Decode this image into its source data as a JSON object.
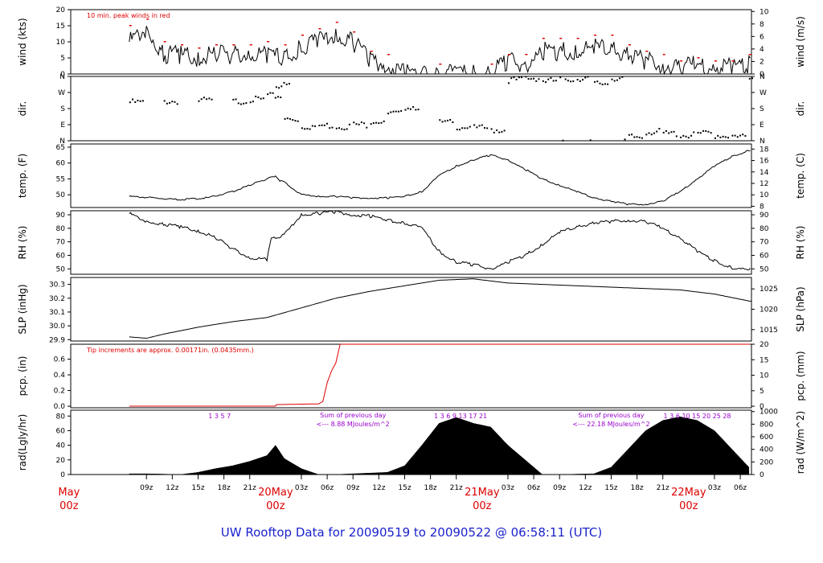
{
  "title": "UW Rooftop Data for 20090519  to  20090522 @ 06:58:11  (UTC)",
  "colors": {
    "axis": "#000000",
    "red": "#dd0000",
    "purple": "#9900cc",
    "blue": "#0000cc"
  },
  "chart_data": [
    {
      "id": "wind",
      "type": "line",
      "ylabel": "wind (kts)",
      "ylabel_right": "wind (m/s)",
      "yticks": [
        "0",
        "5",
        "10",
        "15",
        "20"
      ],
      "ytick_vals": [
        0,
        5,
        10,
        15,
        20
      ],
      "ylim": [
        0,
        20
      ],
      "yticks_right": [
        "0",
        "2",
        "4",
        "6",
        "8",
        "10"
      ],
      "ytick_right_vals": [
        0,
        2,
        4,
        6,
        8,
        10
      ],
      "ylim_right": [
        0,
        10.29
      ],
      "annotation": "10 min. peak winds in red",
      "series": [
        {
          "t": [
            0,
            2,
            4,
            6,
            8,
            10,
            12,
            14,
            16,
            18,
            20,
            22,
            24,
            26,
            28,
            30,
            32,
            34,
            36,
            38,
            40,
            42,
            44,
            46,
            48,
            50,
            52,
            54,
            56,
            58,
            60,
            62,
            64,
            66,
            68,
            70,
            72,
            74,
            76,
            78,
            80,
            82,
            84
          ],
          "v": [
            10,
            14,
            6,
            6,
            5,
            6,
            6,
            6,
            6,
            5,
            8,
            10,
            12,
            10,
            4,
            3,
            0,
            0,
            0,
            0,
            0,
            0,
            4,
            3,
            7,
            7,
            7,
            8,
            8,
            6,
            4,
            3,
            2,
            3,
            2,
            2,
            3,
            5,
            8,
            8,
            8,
            6,
            3
          ]
        }
      ],
      "peaks": {
        "t": [
          0,
          2,
          4,
          6,
          8,
          10,
          12,
          14,
          16,
          18,
          20,
          22,
          24,
          26,
          28,
          30,
          36,
          42,
          44,
          46,
          48,
          50,
          52,
          54,
          56,
          58,
          60,
          62,
          64,
          66,
          68,
          70,
          72,
          74,
          76,
          78,
          80,
          82,
          84
        ],
        "v": [
          15,
          17,
          10,
          9,
          8,
          9,
          9,
          9,
          10,
          9,
          12,
          14,
          16,
          13,
          7,
          6,
          3,
          3,
          6,
          6,
          11,
          11,
          11,
          12,
          12,
          9,
          7,
          6,
          4,
          5,
          4,
          4,
          6,
          9,
          12,
          12,
          12,
          9,
          6
        ]
      }
    },
    {
      "id": "dir",
      "type": "scatter",
      "ylabel": "dir.",
      "ylabel_right": "dir.",
      "yticks": [
        "N",
        "E",
        "S",
        "W",
        "N"
      ],
      "ytick_vals": [
        0,
        90,
        180,
        270,
        360
      ],
      "ylim": [
        0,
        360
      ],
      "series": [
        {
          "t": [
            0,
            4,
            8,
            12,
            14,
            16,
            17,
            18,
            20,
            22,
            24,
            26,
            28,
            30,
            32,
            36,
            38,
            40,
            42,
            44,
            46,
            48,
            50,
            52,
            54,
            56,
            58,
            60,
            62,
            64,
            66,
            68,
            70,
            72,
            74,
            76,
            78,
            80,
            82,
            84
          ],
          "v": [
            215,
            220,
            225,
            220,
            230,
            250,
            310,
            120,
            80,
            85,
            80,
            90,
            110,
            150,
            190,
            100,
            80,
            70,
            60,
            340,
            350,
            335,
            345,
            350,
            320,
            350,
            20,
            50,
            40,
            30,
            40,
            30,
            20,
            355,
            350,
            355,
            350,
            360,
            5,
            40
          ]
        }
      ]
    },
    {
      "id": "temp",
      "type": "line",
      "ylabel": "temp. (F)",
      "ylabel_right": "temp. (C)",
      "yticks": [
        "50",
        "55",
        "60",
        "65"
      ],
      "ytick_vals": [
        50,
        55,
        60,
        65
      ],
      "ylim": [
        46,
        66
      ],
      "yticks_right": [
        "8",
        "10",
        "12",
        "14",
        "16",
        "18"
      ],
      "ytick_right_vals": [
        8,
        10,
        12,
        14,
        16,
        18
      ],
      "ylim_right": [
        7.78,
        18.89
      ],
      "series": [
        {
          "t": [
            0,
            3,
            6,
            9,
            12,
            14,
            16,
            17,
            17.5,
            18,
            19,
            20,
            22,
            24,
            26,
            28,
            30,
            32,
            34,
            36,
            38,
            40,
            42,
            44,
            46,
            48,
            50,
            52,
            54,
            56,
            58,
            60,
            62,
            64,
            66,
            68,
            70,
            72,
            74,
            76,
            78,
            80,
            82,
            84
          ],
          "v": [
            49.5,
            49,
            48.5,
            49,
            51,
            53,
            55,
            56,
            54.5,
            54,
            52,
            50,
            49.5,
            49.5,
            49,
            49,
            49,
            49.5,
            51,
            56,
            59,
            61,
            62.5,
            61,
            58,
            55,
            53,
            51,
            49,
            48,
            47,
            47,
            48,
            51,
            55,
            59,
            62,
            64,
            65,
            63,
            62,
            59,
            57,
            55.5
          ]
        }
      ]
    },
    {
      "id": "rh",
      "type": "line",
      "ylabel": "RH (%)",
      "ylabel_right": "RH (%)",
      "yticks": [
        "50",
        "60",
        "70",
        "80",
        "90"
      ],
      "ytick_vals": [
        50,
        60,
        70,
        80,
        90
      ],
      "ylim": [
        46,
        93
      ],
      "yticks_right": [
        "50",
        "60",
        "70",
        "80",
        "90"
      ],
      "ytick_right_vals": [
        50,
        60,
        70,
        80,
        90
      ],
      "ylim_right": [
        46,
        93
      ],
      "series": [
        {
          "t": [
            0,
            2,
            4,
            6,
            8,
            10,
            12,
            14,
            16,
            16.5,
            17,
            18,
            20,
            22,
            24,
            26,
            28,
            30,
            32,
            34,
            36,
            38,
            40,
            42,
            44,
            46,
            48,
            50,
            52,
            54,
            56,
            58,
            60,
            62,
            64,
            66,
            68,
            70,
            72,
            74,
            76,
            78,
            80,
            82,
            84
          ],
          "v": [
            91,
            85,
            83,
            81,
            78,
            73,
            65,
            58,
            57,
            72,
            73,
            75,
            90,
            91,
            92,
            90,
            89,
            86,
            84,
            80,
            63,
            55,
            53,
            50,
            55,
            60,
            68,
            77,
            81,
            84,
            85,
            86,
            85,
            80,
            73,
            63,
            56,
            51,
            49,
            54,
            56,
            57,
            58,
            58,
            60
          ]
        }
      ]
    },
    {
      "id": "slp",
      "type": "line",
      "ylabel": "SLP (inHg)",
      "ylabel_right": "SLP (hPa)",
      "yticks": [
        "29.9",
        "30.0",
        "30.1",
        "30.2",
        "30.3"
      ],
      "ytick_vals": [
        29.9,
        30.0,
        30.1,
        30.2,
        30.3
      ],
      "ylim": [
        29.89,
        30.35
      ],
      "yticks_right": [
        "1015",
        "1020",
        "1025"
      ],
      "ytick_right_vals": [
        1015,
        1020,
        1025
      ],
      "ylim_right": [
        1012.2,
        1027.8
      ],
      "series": [
        {
          "t": [
            0,
            2,
            4,
            8,
            12,
            16,
            20,
            24,
            28,
            32,
            36,
            40,
            44,
            48,
            52,
            56,
            60,
            64,
            68,
            72,
            76,
            80,
            84
          ],
          "v": [
            29.92,
            29.91,
            29.94,
            29.99,
            30.03,
            30.06,
            30.13,
            30.2,
            30.25,
            30.29,
            30.33,
            30.34,
            30.31,
            30.3,
            30.29,
            30.28,
            30.27,
            30.26,
            30.23,
            30.18,
            30.15,
            30.15,
            30.17
          ]
        }
      ]
    },
    {
      "id": "pcp",
      "type": "line",
      "ylabel": "pcp. (in)",
      "ylabel_right": "pcp. (mm)",
      "yticks": [
        "0.0",
        "0.2",
        "0.4",
        "0.6"
      ],
      "ytick_vals": [
        0,
        0.2,
        0.4,
        0.6
      ],
      "ylim": [
        -0.02,
        0.79
      ],
      "yticks_right": [
        "0",
        "5",
        "10",
        "15",
        "20"
      ],
      "ytick_right_vals": [
        0,
        5,
        10,
        15,
        20
      ],
      "ylim_right": [
        -0.5,
        20
      ],
      "annotation": "Tip increments are approx. 0.00171in. (0.0435mm.)",
      "series": [
        {
          "t": [
            0,
            17,
            17.1,
            22,
            22.5,
            23,
            23.5,
            24,
            24.5,
            84
          ],
          "v": [
            0.0,
            0.0,
            0.02,
            0.03,
            0.06,
            0.3,
            0.45,
            0.55,
            0.79,
            0.79
          ]
        }
      ]
    },
    {
      "id": "rad",
      "type": "area",
      "ylabel": "rad(Lgly/hr)",
      "ylabel_right": "rad (W/m^2)",
      "yticks": [
        "0",
        "20",
        "40",
        "60",
        "80"
      ],
      "ytick_vals": [
        0,
        20,
        40,
        60,
        80
      ],
      "ylim": [
        0,
        88
      ],
      "yticks_right": [
        "0",
        "200",
        "400",
        "600",
        "800",
        "1000"
      ],
      "ytick_right_vals": [
        0,
        200,
        400,
        600,
        800,
        1000
      ],
      "ylim_right": [
        0,
        1022
      ],
      "series": [
        {
          "t": [
            0,
            2,
            6,
            8,
            10,
            12,
            14,
            16,
            17,
            18,
            20,
            22,
            24,
            30,
            32,
            34,
            36,
            38,
            40,
            42,
            44,
            48,
            50,
            54,
            56,
            58,
            60,
            62,
            64,
            66,
            68,
            70,
            72,
            74,
            76,
            78,
            80
          ],
          "v": [
            1,
            1,
            0,
            3,
            8,
            12,
            18,
            26,
            40,
            22,
            8,
            0,
            0,
            3,
            12,
            40,
            70,
            78,
            70,
            65,
            40,
            0,
            0,
            1,
            10,
            35,
            60,
            74,
            79,
            74,
            60,
            35,
            10,
            0,
            0,
            0,
            0
          ]
        }
      ],
      "annotations": [
        {
          "text": "1    3    5    7",
          "t": 10.5
        },
        {
          "text": "Sum of previous day",
          "t": 26
        },
        {
          "text": "<--- 8.88 MJoules/m^2",
          "t": 26
        },
        {
          "text": "1    3    6    9    13    17    21",
          "t": 38.5
        },
        {
          "text": "Sum of previous day",
          "t": 56
        },
        {
          "text": "<--- 22.18 MJoules/m^2",
          "t": 56
        },
        {
          "text": "1    3    6   10  15  20   25   28",
          "t": 66
        }
      ]
    }
  ],
  "x_axis": {
    "ticks": [
      {
        "label": "09z",
        "t": 2
      },
      {
        "label": "12z",
        "t": 5
      },
      {
        "label": "15z",
        "t": 8
      },
      {
        "label": "18z",
        "t": 11
      },
      {
        "label": "21z",
        "t": 14
      },
      {
        "label": "03z",
        "t": 20
      },
      {
        "label": "06z",
        "t": 23
      },
      {
        "label": "09z",
        "t": 26
      },
      {
        "label": "12z",
        "t": 29
      },
      {
        "label": "15z",
        "t": 32
      },
      {
        "label": "18z",
        "t": 35
      },
      {
        "label": "21z",
        "t": 38
      },
      {
        "label": "03z",
        "t": 44
      },
      {
        "label": "06z",
        "t": 47
      },
      {
        "label": "09z",
        "t": 50
      },
      {
        "label": "12z",
        "t": 53
      },
      {
        "label": "15z",
        "t": 56
      },
      {
        "label": "18z",
        "t": 59
      },
      {
        "label": "21z",
        "t": 62
      },
      {
        "label": "03z",
        "t": 68
      },
      {
        "label": "06z",
        "t": 71
      }
    ],
    "days": [
      {
        "line1": "May",
        "line2": "00z",
        "t": -7
      },
      {
        "line1": "20May",
        "line2": "00z",
        "t": 17
      },
      {
        "line1": "21May",
        "line2": "00z",
        "t": 41
      },
      {
        "line1": "22May",
        "line2": "00z",
        "t": 65
      }
    ]
  }
}
